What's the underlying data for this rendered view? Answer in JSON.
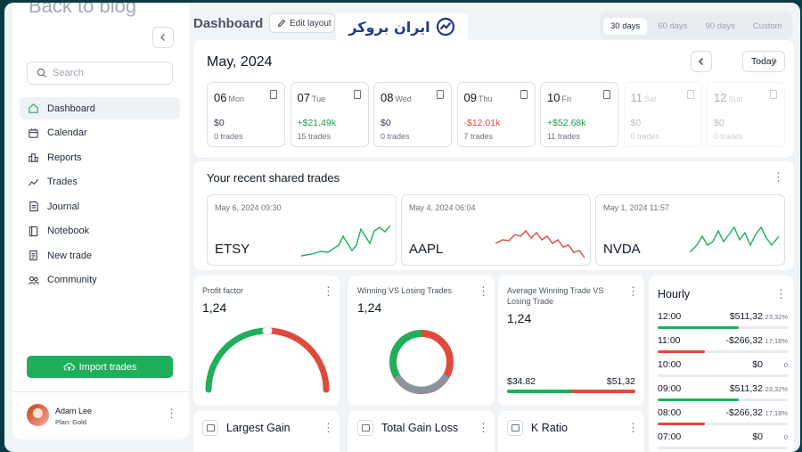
{
  "sidebar": {
    "back_label": "Back to blog",
    "search_placeholder": "Search",
    "items": [
      {
        "label": "Dashboard",
        "active": true
      },
      {
        "label": "Calendar"
      },
      {
        "label": "Reports"
      },
      {
        "label": "Trades"
      },
      {
        "label": "Journal"
      },
      {
        "label": "Notebook"
      },
      {
        "label": "New trade"
      },
      {
        "label": "Community"
      }
    ],
    "import_label": "Import trades",
    "user": {
      "name": "Adam Lee",
      "plan": "Plan: Gold"
    }
  },
  "header": {
    "title": "Dashboard",
    "edit_label": "Edit layout",
    "watermark": "ایران بروکر",
    "ranges": [
      "30 days",
      "60 days",
      "90 days",
      "Custom"
    ],
    "active_range": "30 days"
  },
  "calendar": {
    "month": "May, 2024",
    "today_label": "Today",
    "days": [
      {
        "num": "06",
        "name": "Mon",
        "pnl": "$0",
        "trades": "0 trades",
        "tone": "zero"
      },
      {
        "num": "07",
        "name": "Tue",
        "pnl": "+$21.49k",
        "trades": "15 trades",
        "tone": "pos"
      },
      {
        "num": "08",
        "name": "Wed",
        "pnl": "$0",
        "trades": "0 trades",
        "tone": "zero"
      },
      {
        "num": "09",
        "name": "Thu",
        "pnl": "-$12.01k",
        "trades": "7 trades",
        "tone": "neg"
      },
      {
        "num": "10",
        "name": "Fri",
        "pnl": "+$52.68k",
        "trades": "11 trades",
        "tone": "pos"
      },
      {
        "num": "11",
        "name": "Sat",
        "pnl": "$0",
        "trades": "0 trades",
        "tone": "zero",
        "faded": true
      },
      {
        "num": "12",
        "name": "Sun",
        "pnl": "$0",
        "trades": "0 trades",
        "tone": "zero",
        "faded": true
      }
    ]
  },
  "shared": {
    "title": "Your recent shared trades",
    "trades": [
      {
        "date": "May 6, 2024 09:30",
        "symbol": "ETSY",
        "color": "#1faf5a"
      },
      {
        "date": "May 4, 2024 06:04",
        "symbol": "AAPL",
        "color": "#e04a3b"
      },
      {
        "date": "May 1, 2024 11:57",
        "symbol": "NVDA",
        "color": "#1faf5a"
      }
    ]
  },
  "stats": {
    "profit_factor": {
      "title": "Profit factor",
      "value": "1,24"
    },
    "win_vs_loss": {
      "title": "Winning VS Losing Trades",
      "value": "1,24"
    },
    "avg_win_loss": {
      "title": "Average Winning Trade VS Losing Trade",
      "value": "1,24",
      "win": "$34.82",
      "loss": "$51,32"
    }
  },
  "hourly": {
    "title": "Hourly",
    "rows": [
      {
        "time": "12:00",
        "value": "$511,32",
        "pct": "23,32%",
        "fill": 0.62,
        "color": "#1faf5a"
      },
      {
        "time": "11:00",
        "value": "-$266,32",
        "pct": "17,18%",
        "fill": 0.36,
        "color": "#e04a3b"
      },
      {
        "time": "10:00",
        "value": "$0",
        "pct": "0",
        "fill": 0,
        "color": "#1faf5a"
      },
      {
        "time": "09:00",
        "value": "$511,32",
        "pct": "23,32%",
        "fill": 0.62,
        "color": "#1faf5a"
      },
      {
        "time": "08:00",
        "value": "-$266,32",
        "pct": "17,18%",
        "fill": 0.36,
        "color": "#e04a3b"
      },
      {
        "time": "07:00",
        "value": "$0",
        "pct": "0",
        "fill": 0,
        "color": "#1faf5a"
      }
    ]
  },
  "bottom_cards": [
    "Largest Gain",
    "Total Gain Loss",
    "K Ratio"
  ],
  "colors": {
    "green": "#1faf5a",
    "red": "#e04a3b",
    "grey": "#8a939e"
  }
}
